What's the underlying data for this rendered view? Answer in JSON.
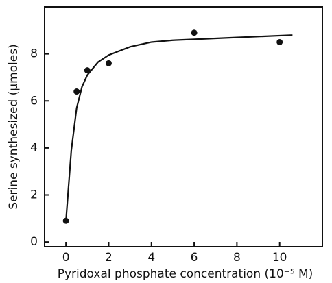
{
  "chart_data": {
    "type": "scatter",
    "xlabel": "Pyridoxal phosphate concentration (10⁻⁵ M)",
    "ylabel": "Serine synthesized (μmoles)",
    "xlim": [
      -1,
      12
    ],
    "ylim": [
      -0.2,
      10
    ],
    "xticks": [
      0,
      2,
      4,
      6,
      8,
      10
    ],
    "yticks": [
      0,
      2,
      4,
      6,
      8
    ],
    "color": "#111111",
    "series": [
      {
        "x": [
          0,
          0.5,
          1,
          2,
          6,
          10
        ],
        "values": [
          0.9,
          6.4,
          7.3,
          7.6,
          8.9,
          8.5
        ]
      }
    ],
    "curve": {
      "x": [
        0,
        0.25,
        0.5,
        0.75,
        1,
        1.5,
        2,
        3,
        4,
        5,
        6,
        8,
        10.6
      ],
      "values": [
        0.9,
        3.9,
        5.7,
        6.6,
        7.1,
        7.65,
        7.95,
        8.3,
        8.5,
        8.58,
        8.62,
        8.7,
        8.8
      ]
    }
  }
}
